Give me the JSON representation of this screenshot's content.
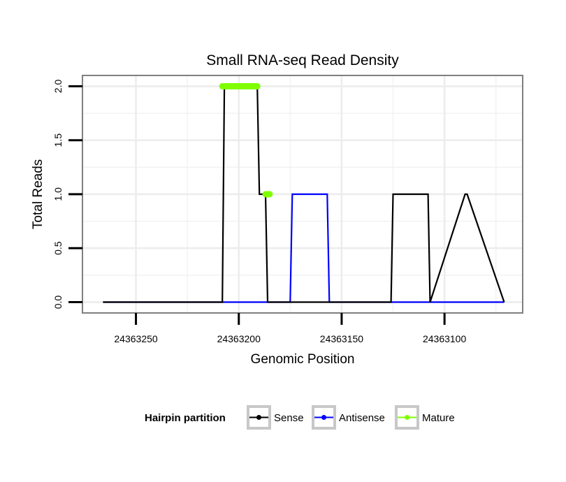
{
  "chart_data": {
    "type": "line",
    "title": "Small RNA-seq Read Density",
    "xlabel": "Genomic Position",
    "ylabel": "Total Reads",
    "x_reversed": true,
    "xlim": [
      24363276,
      24363062
    ],
    "ylim": [
      -0.1,
      2.1
    ],
    "xticks": [
      24363250,
      24363200,
      24363150,
      24363100
    ],
    "xtick_labels": [
      "24363250",
      "24363200",
      "24363150",
      "24363100"
    ],
    "yticks": [
      0,
      0.5,
      1,
      1.5,
      2
    ],
    "ytick_labels": [
      "0.0",
      "0.5",
      "1.0",
      "1.5",
      "2.0"
    ],
    "grid": true,
    "series": [
      {
        "name": "Sense",
        "color": "#000000",
        "x": [
          24363266,
          24363208,
          24363207,
          24363191,
          24363190,
          24363187,
          24363186,
          24363182,
          24363181,
          24363158,
          24363157,
          24363140,
          24363139,
          24363126,
          24363125,
          24363108,
          24363107,
          24363090,
          24363089,
          24363071
        ],
        "y": [
          0,
          0,
          2,
          2,
          1,
          1,
          0,
          0,
          0,
          0,
          0,
          0,
          0,
          0,
          1,
          1,
          0,
          1,
          1,
          0
        ]
      },
      {
        "name": "Antisense",
        "color": "#0000ff",
        "x": [
          24363266,
          24363175,
          24363174,
          24363157,
          24363156,
          24363071
        ],
        "y": [
          0,
          0,
          1,
          1,
          0,
          0
        ]
      },
      {
        "name": "Mature",
        "color": "#7fff00",
        "x": [
          24363208,
          24363191,
          24363187,
          24363185
        ],
        "y": [
          2,
          2,
          1,
          1
        ],
        "segments": [
          [
            24363208,
            24363191,
            2
          ],
          [
            24363187,
            24363185,
            1
          ]
        ]
      }
    ],
    "legend": {
      "title": "Hairpin partition",
      "position": "bottom",
      "entries": [
        "Sense",
        "Antisense",
        "Mature"
      ]
    }
  }
}
